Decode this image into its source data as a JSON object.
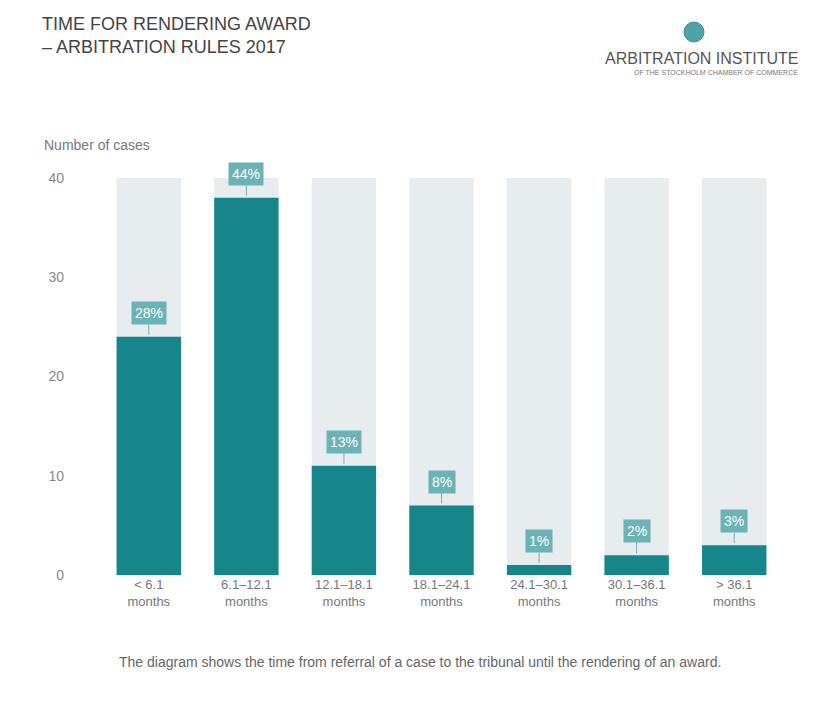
{
  "chart_data": {
    "type": "bar",
    "title": "TIME FOR RENDERING AWARD\n– ARBITRATION RULES 2017",
    "source": "ARBITRATION INSTITUTE",
    "source_note": "OF THE STOCKHOLM CHAMBER OF COMMERCE",
    "y_label": "Number of cases",
    "caption": "The diagram shows the time from referral of a case to the tribunal until the rendering of an award.",
    "categories": [
      "< 6.1\nmonths",
      "6.1–12.1\nmonths",
      "12.1–18.1\nmonths",
      "18.1–24.1\nmonths",
      "24.1–30.1\nmonths",
      "30.1–36.1\nmonths",
      "> 36.1\nmonths"
    ],
    "values": [
      24,
      38,
      11,
      7,
      1,
      2,
      3
    ],
    "shares": [
      "28%",
      "44%",
      "13%",
      "8%",
      "1%",
      "2%",
      "3%"
    ],
    "color": "#16868a",
    "ylim": [
      0,
      40
    ],
    "yticks": [
      0,
      10,
      20,
      30,
      40
    ],
    "grid": false
  }
}
